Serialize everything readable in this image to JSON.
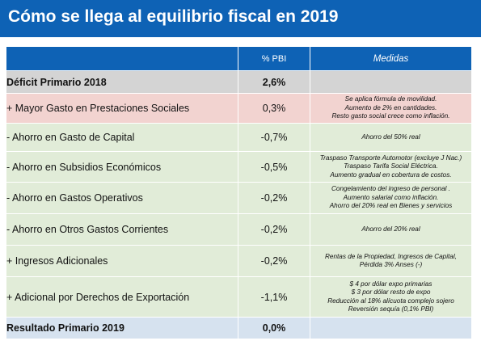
{
  "title": "Cómo se llega al equilibrio fiscal en 2019",
  "colors": {
    "header_blue": "#0e62b5",
    "total_row": "#d4d4d4",
    "increase_row": "#f2d3d0",
    "saving_row": "#e1ecd8",
    "result_row": "#d6e2ef"
  },
  "table": {
    "headers": {
      "concept": "",
      "pbi": "% PBI",
      "medidas": "Medidas"
    },
    "rows": [
      {
        "concept": "Déficit Primario 2018",
        "pbi": "2,6%",
        "medidas": []
      },
      {
        "concept": "+ Mayor Gasto en Prestaciones Sociales",
        "pbi": "0,3%",
        "medidas": [
          "Se aplica fórmula de movilidad.",
          "Aumento de 2% en cantidades.",
          "Resto gasto social crece como inflación."
        ]
      },
      {
        "concept": "- Ahorro en Gasto de Capital",
        "pbi": "-0,7%",
        "medidas": [
          "Ahorro del 50% real"
        ]
      },
      {
        "concept": "- Ahorro en Subsidios Económicos",
        "pbi": "-0,5%",
        "medidas": [
          "Traspaso Transporte Automotor (excluye J Nac.)",
          "Traspaso Tarifa Social Eléctrica.",
          "Aumento gradual en cobertura de costos."
        ]
      },
      {
        "concept": "- Ahorro en Gastos Operativos",
        "pbi": "-0,2%",
        "medidas": [
          "Congelamiento del ingreso de personal .",
          "Aumento salarial como inflación.",
          "Ahorro del 20% real en Bienes y servicios"
        ]
      },
      {
        "concept": "- Ahorro en Otros Gastos Corrientes",
        "pbi": "-0,2%",
        "medidas": [
          "Ahorro del 20% real"
        ]
      },
      {
        "concept": "+ Ingresos Adicionales",
        "pbi": "-0,2%",
        "medidas": [
          "Rentas de la Propiedad, Ingresos de Capital,",
          "Pérdida 3% Anses (-)"
        ]
      },
      {
        "concept": "+ Adicional por Derechos de Exportación",
        "pbi": "-1,1%",
        "medidas": [
          "$ 4 por dólar expo primarias",
          "$ 3 por dólar resto de expo",
          "Reducción al 18% alícuota complejo sojero",
          "Reversión sequía (0,1% PBI)"
        ]
      },
      {
        "concept": "Resultado Primario 2019",
        "pbi": "0,0%",
        "medidas": []
      }
    ]
  }
}
